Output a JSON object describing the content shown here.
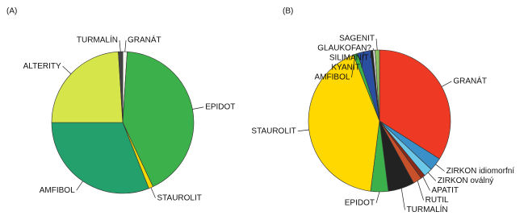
{
  "chart_data": [
    {
      "type": "pie",
      "title": "(A)",
      "categories": [
        "GRANÁT",
        "EPIDOT",
        "STAUROLIT",
        "AMFIBOL",
        "ALTERITY",
        "TURMALÍN"
      ],
      "values": [
        1,
        42,
        1,
        31,
        24,
        1
      ],
      "colors": [
        "#f4f4ee",
        "#3cb04a",
        "#f5d800",
        "#23a06c",
        "#d6e64a",
        "#444444"
      ]
    },
    {
      "type": "pie",
      "title": "(B)",
      "categories": [
        "GRANÁT",
        "ZIRKON idiomorfní",
        "ZIRKON oválný",
        "APATIT",
        "RUTIL",
        "TURMALÍN",
        "EPIDOT",
        "STAUROLIT",
        "AMFIBOL",
        "KYANIT",
        "SILIMANIT",
        "GLAUKOFAN?",
        "SAGENIT"
      ],
      "values": [
        34,
        3,
        2,
        1,
        2,
        6,
        4,
        42,
        1,
        3,
        0.5,
        0.5,
        1
      ],
      "colors": [
        "#ee3a24",
        "#3a8fc8",
        "#6cc8e8",
        "#8a2a1a",
        "#c8502a",
        "#222222",
        "#3cb04a",
        "#ffd800",
        "#3cb04a",
        "#2a4fa0",
        "#222222",
        "#dddddd",
        "#8dc060"
      ]
    }
  ]
}
